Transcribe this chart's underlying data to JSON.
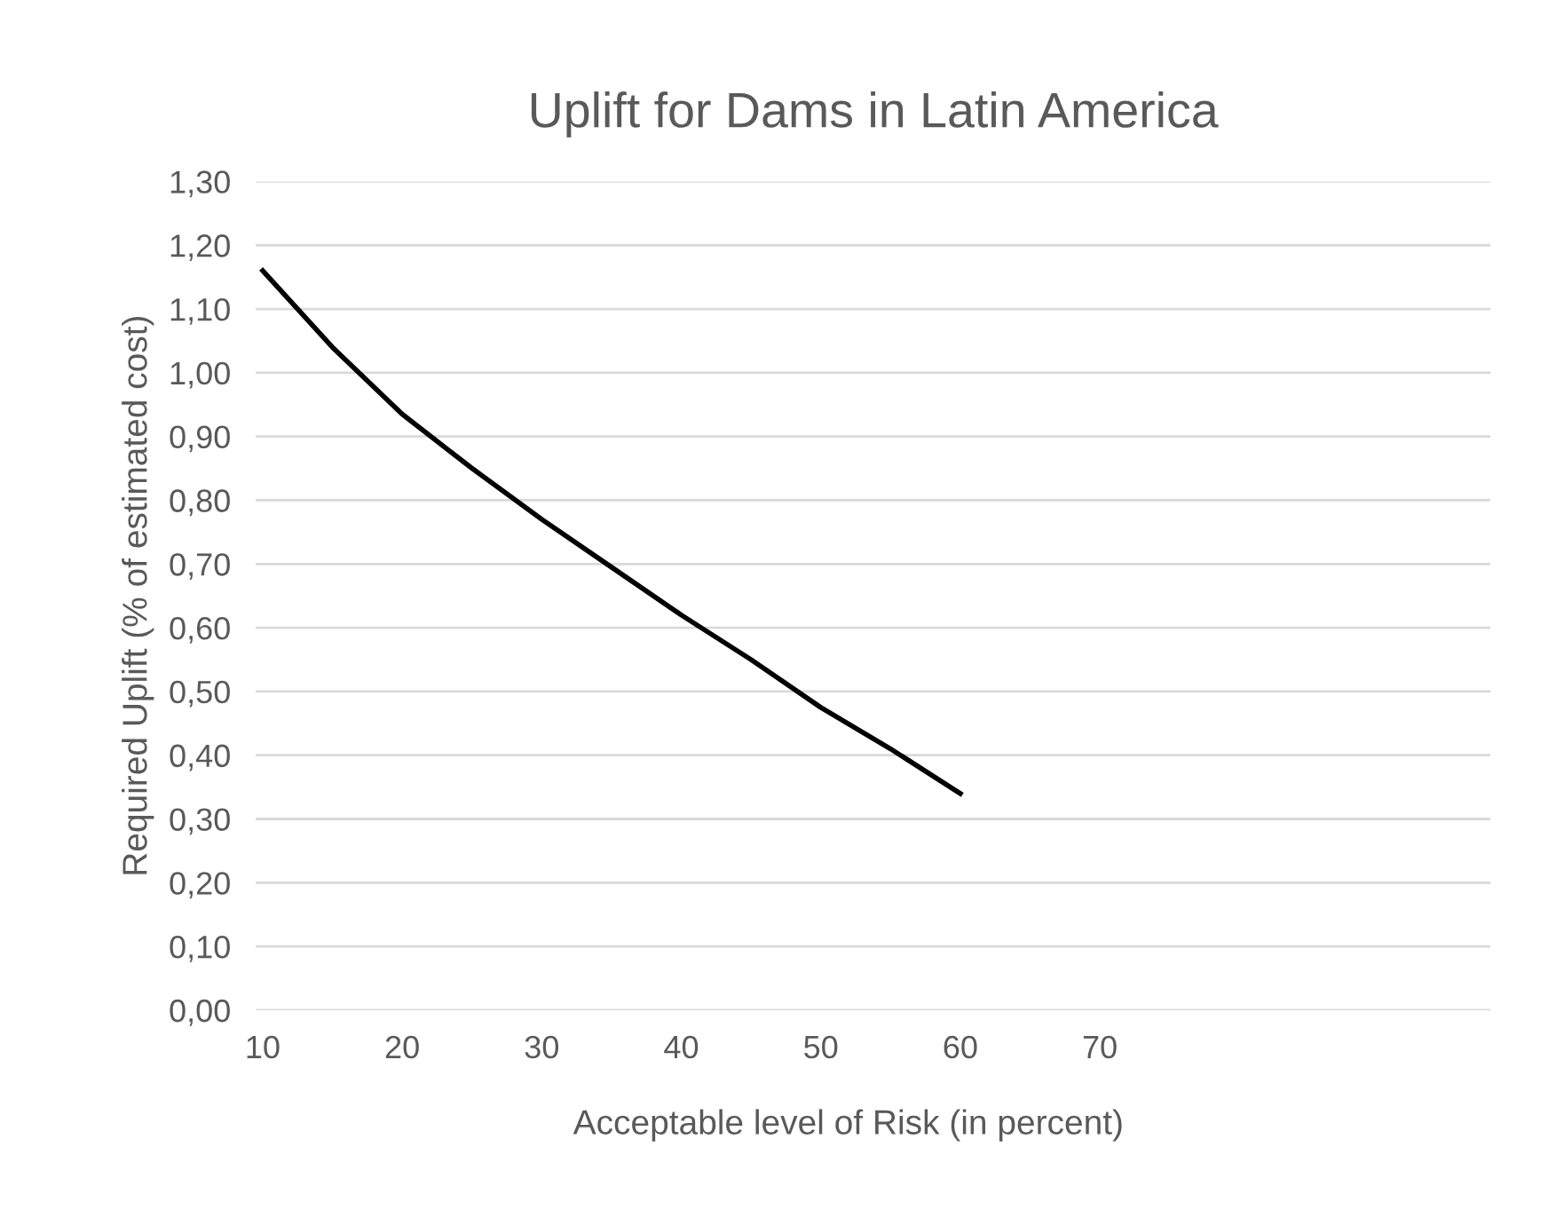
{
  "chart_data": {
    "type": "line",
    "title": "Uplift for Dams in Latin America",
    "xlabel": "Acceptable level of Risk (in percent)",
    "ylabel": "Required Uplift (% of estimated cost)",
    "x": [
      10,
      15,
      20,
      25,
      30,
      35,
      40,
      45,
      50,
      55,
      60
    ],
    "series": [
      {
        "color": "#000000",
        "values": [
          1.16,
          1.04,
          0.935,
          0.85,
          0.77,
          0.695,
          0.62,
          0.55,
          0.475,
          0.41,
          0.34
        ]
      }
    ],
    "xlim": [
      9.5,
      98
    ],
    "xticks": [
      10,
      20,
      30,
      40,
      50,
      60,
      70
    ],
    "ylim": [
      0,
      1.3
    ],
    "yticks": [
      {
        "value": 0,
        "label": "0,00"
      },
      {
        "value": 0.1,
        "label": "0,10"
      },
      {
        "value": 0.2,
        "label": "0,20"
      },
      {
        "value": 0.3,
        "label": "0,30"
      },
      {
        "value": 0.4,
        "label": "0,40"
      },
      {
        "value": 0.5,
        "label": "0,50"
      },
      {
        "value": 0.6,
        "label": "0,60"
      },
      {
        "value": 0.7,
        "label": "0,70"
      },
      {
        "value": 0.8,
        "label": "0,80"
      },
      {
        "value": 0.9,
        "label": "0,90"
      },
      {
        "value": 1.0,
        "label": "1,00"
      },
      {
        "value": 1.1,
        "label": "1,10"
      },
      {
        "value": 1.2,
        "label": "1,20"
      },
      {
        "value": 1.3,
        "label": "1,30"
      }
    ],
    "grid": "y",
    "legend": false,
    "marker": "none",
    "line_style": "solid"
  }
}
